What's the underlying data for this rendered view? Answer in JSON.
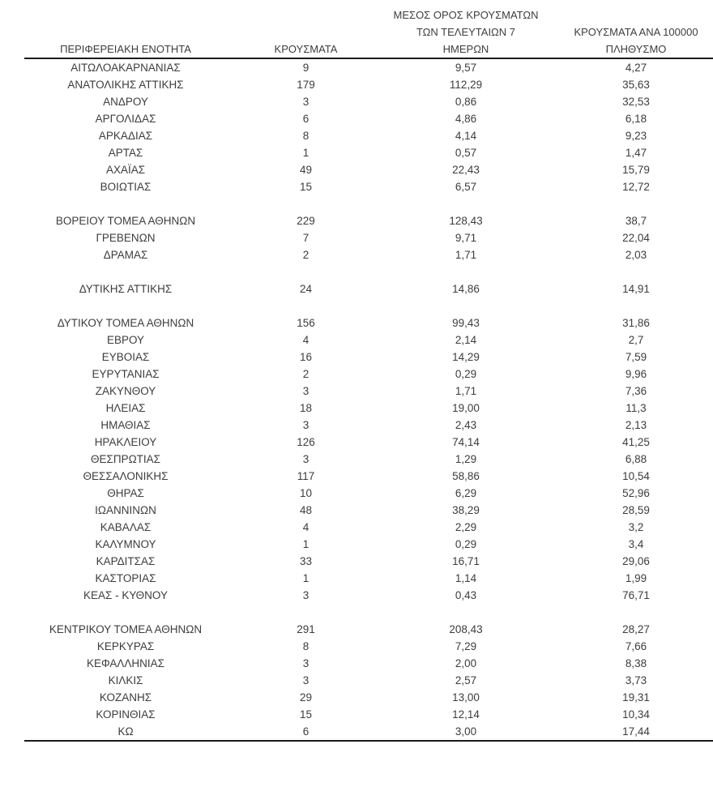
{
  "table": {
    "headers": {
      "col1": "ΠΕΡΙΦΕΡΕΙΑΚΗ ΕΝΟΤΗΤΑ",
      "col2": "ΚΡΟΥΣΜΑΤΑ",
      "col3_lines": [
        "ΜΕΣΟΣ ΟΡΟΣ ΚΡΟΥΣΜΑΤΩΝ",
        "ΤΩΝ ΤΕΛΕΥΤΑΙΩΝ 7",
        "ΗΜΕΡΩΝ"
      ],
      "col4_lines": [
        "ΚΡΟΥΣΜΑΤΑ ΑΝΑ 100000",
        "ΠΛΗΘΥΣΜΟ"
      ]
    },
    "groups": [
      [
        [
          "ΑΙΤΩΛΟΑΚΑΡΝΑΝΙΑΣ",
          "9",
          "9,57",
          "4,27"
        ],
        [
          "ΑΝΑΤΟΛΙΚΗΣ ΑΤΤΙΚΗΣ",
          "179",
          "112,29",
          "35,63"
        ],
        [
          "ΑΝΔΡΟΥ",
          "3",
          "0,86",
          "32,53"
        ],
        [
          "ΑΡΓΟΛΙΔΑΣ",
          "6",
          "4,86",
          "6,18"
        ],
        [
          "ΑΡΚΑΔΙΑΣ",
          "8",
          "4,14",
          "9,23"
        ],
        [
          "ΑΡΤΑΣ",
          "1",
          "0,57",
          "1,47"
        ],
        [
          "ΑΧΑΪΑΣ",
          "49",
          "22,43",
          "15,79"
        ],
        [
          "ΒΟΙΩΤΙΑΣ",
          "15",
          "6,57",
          "12,72"
        ]
      ],
      [
        [
          "ΒΟΡΕΙΟΥ ΤΟΜΕΑ ΑΘΗΝΩΝ",
          "229",
          "128,43",
          "38,7"
        ],
        [
          "ΓΡΕΒΕΝΩΝ",
          "7",
          "9,71",
          "22,04"
        ],
        [
          "ΔΡΑΜΑΣ",
          "2",
          "1,71",
          "2,03"
        ]
      ],
      [
        [
          "ΔΥΤΙΚΗΣ ΑΤΤΙΚΗΣ",
          "24",
          "14,86",
          "14,91"
        ]
      ],
      [
        [
          "ΔΥΤΙΚΟΥ ΤΟΜΕΑ ΑΘΗΝΩΝ",
          "156",
          "99,43",
          "31,86"
        ],
        [
          "ΕΒΡΟΥ",
          "4",
          "2,14",
          "2,7"
        ],
        [
          "ΕΥΒΟΙΑΣ",
          "16",
          "14,29",
          "7,59"
        ],
        [
          "ΕΥΡΥΤΑΝΙΑΣ",
          "2",
          "0,29",
          "9,96"
        ],
        [
          "ΖΑΚΥΝΘΟΥ",
          "3",
          "1,71",
          "7,36"
        ],
        [
          "ΗΛΕΙΑΣ",
          "18",
          "19,00",
          "11,3"
        ],
        [
          "ΗΜΑΘΙΑΣ",
          "3",
          "2,43",
          "2,13"
        ],
        [
          "ΗΡΑΚΛΕΙΟΥ",
          "126",
          "74,14",
          "41,25"
        ],
        [
          "ΘΕΣΠΡΩΤΙΑΣ",
          "3",
          "1,29",
          "6,88"
        ],
        [
          "ΘΕΣΣΑΛΟΝΙΚΗΣ",
          "117",
          "58,86",
          "10,54"
        ],
        [
          "ΘΗΡΑΣ",
          "10",
          "6,29",
          "52,96"
        ],
        [
          "ΙΩΑΝΝΙΝΩΝ",
          "48",
          "38,29",
          "28,59"
        ],
        [
          "ΚΑΒΑΛΑΣ",
          "4",
          "2,29",
          "3,2"
        ],
        [
          "ΚΑΛΥΜΝΟΥ",
          "1",
          "0,29",
          "3,4"
        ],
        [
          "ΚΑΡΔΙΤΣΑΣ",
          "33",
          "16,71",
          "29,06"
        ],
        [
          "ΚΑΣΤΟΡΙΑΣ",
          "1",
          "1,14",
          "1,99"
        ],
        [
          "ΚΕΑΣ - ΚΥΘΝΟΥ",
          "3",
          "0,43",
          "76,71"
        ]
      ],
      [
        [
          "ΚΕΝΤΡΙΚΟΥ ΤΟΜΕΑ ΑΘΗΝΩΝ",
          "291",
          "208,43",
          "28,27"
        ],
        [
          "ΚΕΡΚΥΡΑΣ",
          "8",
          "7,29",
          "7,66"
        ],
        [
          "ΚΕΦΑΛΛΗΝΙΑΣ",
          "3",
          "2,00",
          "8,38"
        ],
        [
          "ΚΙΛΚΙΣ",
          "3",
          "2,57",
          "3,73"
        ],
        [
          "ΚΟΖΑΝΗΣ",
          "29",
          "13,00",
          "19,31"
        ],
        [
          "ΚΟΡΙΝΘΙΑΣ",
          "15",
          "12,14",
          "10,34"
        ],
        [
          "ΚΩ",
          "6",
          "3,00",
          "17,44"
        ]
      ]
    ]
  }
}
